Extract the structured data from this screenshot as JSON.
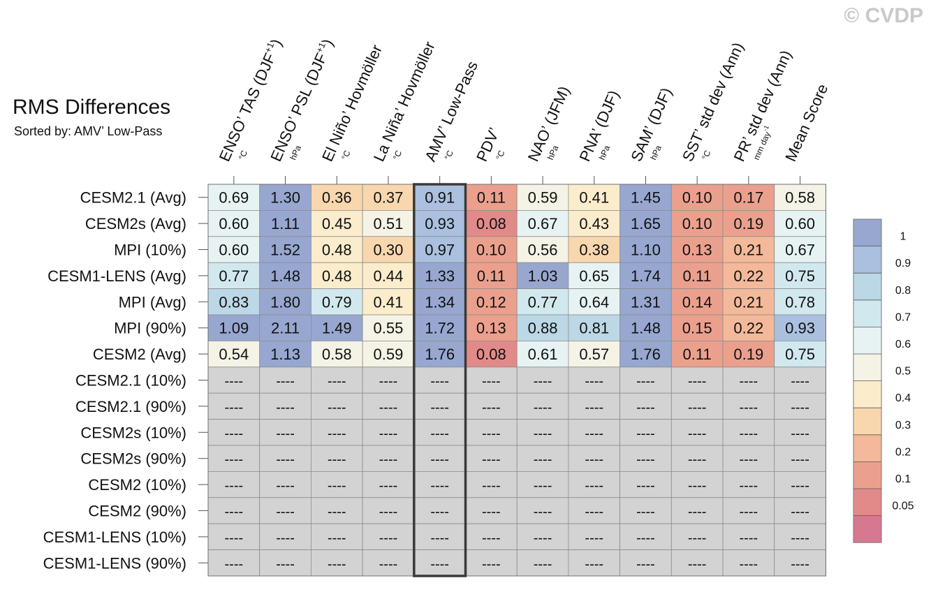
{
  "watermark": "© CVDP",
  "chart_data": {
    "type": "heatmap",
    "title": "RMS Differences",
    "subtitle": "Sorted by: AMV’ Low-Pass",
    "columns": [
      {
        "label": "ENSO’ TAS (DJF",
        "sup": "+1",
        "close": ")",
        "unit": "°C"
      },
      {
        "label": "ENSO’ PSL (DJF",
        "sup": "+1",
        "close": ")",
        "unit": "hPa"
      },
      {
        "label": "El Niño’ Hovmöller",
        "unit": "°C"
      },
      {
        "label": "La Niña’ Hovmöller",
        "unit": "°C"
      },
      {
        "label": "AMV’ Low-Pass",
        "unit": "°C"
      },
      {
        "label": "PDV’",
        "unit": "°C"
      },
      {
        "label": "NAO’ (JFM)",
        "unit": "hPa"
      },
      {
        "label": "PNA’ (DJF)",
        "unit": "hPa"
      },
      {
        "label": "SAM’ (DJF)",
        "unit": "hPa"
      },
      {
        "label": "SST’ std dev (Ann)",
        "unit": "°C"
      },
      {
        "label": "PR’ std dev (Ann)",
        "unit": "mm day",
        "unit_sup": "-1"
      },
      {
        "label": "Mean Score",
        "unit": ""
      }
    ],
    "highlight_column": 4,
    "rows": [
      {
        "label": "CESM2.1 (Avg)",
        "values": [
          "0.69",
          "1.30",
          "0.36",
          "0.37",
          "0.91",
          "0.11",
          "0.59",
          "0.41",
          "1.45",
          "0.10",
          "0.17",
          "0.58"
        ]
      },
      {
        "label": "CESM2s (Avg)",
        "values": [
          "0.60",
          "1.11",
          "0.45",
          "0.51",
          "0.93",
          "0.08",
          "0.67",
          "0.43",
          "1.65",
          "0.10",
          "0.19",
          "0.60"
        ]
      },
      {
        "label": "MPI (10%)",
        "values": [
          "0.60",
          "1.52",
          "0.48",
          "0.30",
          "0.97",
          "0.10",
          "0.56",
          "0.38",
          "1.10",
          "0.13",
          "0.21",
          "0.67"
        ]
      },
      {
        "label": "CESM1-LENS (Avg)",
        "values": [
          "0.77",
          "1.48",
          "0.48",
          "0.44",
          "1.33",
          "0.11",
          "1.03",
          "0.65",
          "1.74",
          "0.11",
          "0.22",
          "0.75"
        ]
      },
      {
        "label": "MPI (Avg)",
        "values": [
          "0.83",
          "1.80",
          "0.79",
          "0.41",
          "1.34",
          "0.12",
          "0.77",
          "0.64",
          "1.31",
          "0.14",
          "0.21",
          "0.78"
        ]
      },
      {
        "label": "MPI (90%)",
        "values": [
          "1.09",
          "2.11",
          "1.49",
          "0.55",
          "1.72",
          "0.13",
          "0.88",
          "0.81",
          "1.48",
          "0.15",
          "0.22",
          "0.93"
        ]
      },
      {
        "label": "CESM2 (Avg)",
        "values": [
          "0.54",
          "1.13",
          "0.58",
          "0.59",
          "1.76",
          "0.08",
          "0.61",
          "0.57",
          "1.76",
          "0.11",
          "0.19",
          "0.75"
        ]
      },
      {
        "label": "CESM2.1 (10%)",
        "values": [
          "----",
          "----",
          "----",
          "----",
          "----",
          "----",
          "----",
          "----",
          "----",
          "----",
          "----",
          "----"
        ]
      },
      {
        "label": "CESM2.1 (90%)",
        "values": [
          "----",
          "----",
          "----",
          "----",
          "----",
          "----",
          "----",
          "----",
          "----",
          "----",
          "----",
          "----"
        ]
      },
      {
        "label": "CESM2s (10%)",
        "values": [
          "----",
          "----",
          "----",
          "----",
          "----",
          "----",
          "----",
          "----",
          "----",
          "----",
          "----",
          "----"
        ]
      },
      {
        "label": "CESM2s (90%)",
        "values": [
          "----",
          "----",
          "----",
          "----",
          "----",
          "----",
          "----",
          "----",
          "----",
          "----",
          "----",
          "----"
        ]
      },
      {
        "label": "CESM2 (10%)",
        "values": [
          "----",
          "----",
          "----",
          "----",
          "----",
          "----",
          "----",
          "----",
          "----",
          "----",
          "----",
          "----"
        ]
      },
      {
        "label": "CESM2 (90%)",
        "values": [
          "----",
          "----",
          "----",
          "----",
          "----",
          "----",
          "----",
          "----",
          "----",
          "----",
          "----",
          "----"
        ]
      },
      {
        "label": "CESM1-LENS (10%)",
        "values": [
          "----",
          "----",
          "----",
          "----",
          "----",
          "----",
          "----",
          "----",
          "----",
          "----",
          "----",
          "----"
        ]
      },
      {
        "label": "CESM1-LENS (90%)",
        "values": [
          "----",
          "----",
          "----",
          "----",
          "----",
          "----",
          "----",
          "----",
          "----",
          "----",
          "----",
          "----"
        ]
      }
    ],
    "missing_color": "#d3d3d3",
    "colorbar": {
      "labels": [
        "1",
        "0.9",
        "0.8",
        "0.7",
        "0.6",
        "0.5",
        "0.4",
        "0.3",
        "0.2",
        "0.1",
        "0.05"
      ],
      "colors": [
        "#97a7d0",
        "#aac0de",
        "#bcd8e7",
        "#d2e8ef",
        "#e7f3f3",
        "#f4f3e6",
        "#fbeccc",
        "#f9d7ae",
        "#f4b99a",
        "#eba08e",
        "#e28a8a",
        "#d57890"
      ]
    }
  }
}
